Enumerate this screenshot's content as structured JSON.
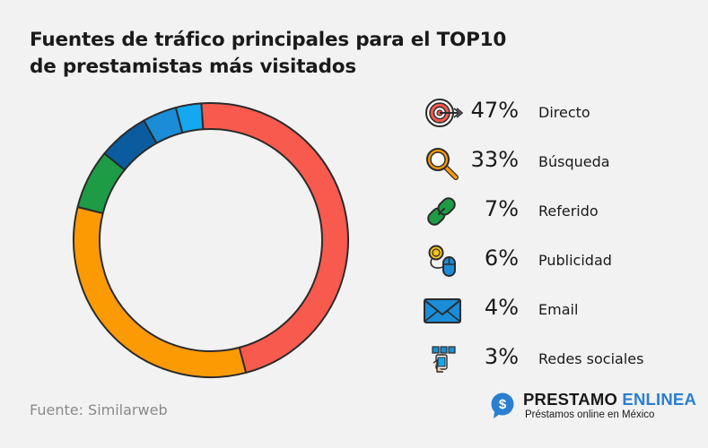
{
  "title": {
    "line1": "Fuentes de tráfico principales para el TOP10",
    "line2": "de prestamistas más visitados"
  },
  "chart_data": {
    "type": "pie",
    "title": "Fuentes de tráfico principales para el TOP10 de prestamistas más visitados",
    "categories": [
      "Directo",
      "Búsqueda",
      "Referido",
      "Publicidad",
      "Email",
      "Redes sociales"
    ],
    "values": [
      47,
      33,
      7,
      6,
      4,
      3
    ],
    "unit": "%",
    "colors": [
      "#f95a4e",
      "#fc9a04",
      "#1e9c45",
      "#0a5c9e",
      "#1b8cd7",
      "#14a8f0"
    ],
    "legend_position": "right"
  },
  "legend": [
    {
      "pct": "47%",
      "label": "Directo",
      "icon": "target-icon"
    },
    {
      "pct": "33%",
      "label": "Búsqueda",
      "icon": "magnifier-icon"
    },
    {
      "pct": "7%",
      "label": "Referido",
      "icon": "link-icon"
    },
    {
      "pct": "6%",
      "label": "Publicidad",
      "icon": "coin-mouse-icon"
    },
    {
      "pct": "4%",
      "label": "Email",
      "icon": "envelope-icon"
    },
    {
      "pct": "3%",
      "label": "Redes sociales",
      "icon": "social-hand-icon"
    }
  ],
  "source": "Fuente: Similarweb",
  "brand": {
    "name_part1": "PRESTAMO",
    "name_part2": "ENLINEA",
    "tagline": "Préstamos online en México",
    "logo_symbol": "$"
  }
}
